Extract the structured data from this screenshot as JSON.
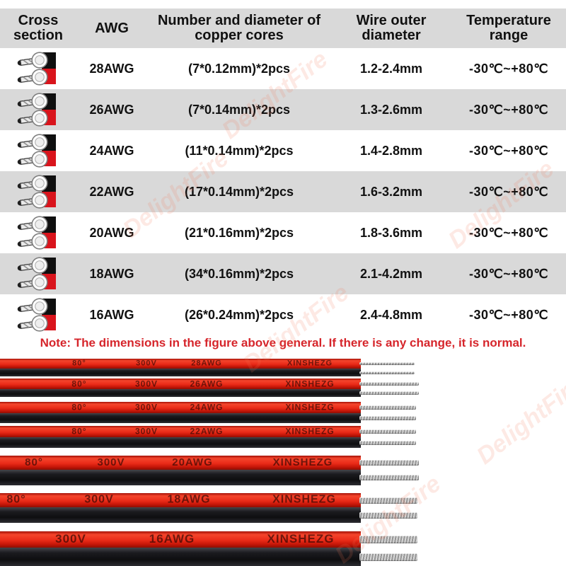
{
  "table": {
    "headers": [
      "Cross section",
      "AWG",
      "Number and diameter of copper cores",
      "Wire outer diameter",
      "Temperature range"
    ],
    "rows": [
      {
        "awg": "28AWG",
        "cores": "(7*0.12mm)*2pcs",
        "outer_diameter": "1.2-2.4mm",
        "temp_range": "-30℃~+80℃"
      },
      {
        "awg": "26AWG",
        "cores": "(7*0.14mm)*2pcs",
        "outer_diameter": "1.3-2.6mm",
        "temp_range": "-30℃~+80℃"
      },
      {
        "awg": "24AWG",
        "cores": "(11*0.14mm)*2pcs",
        "outer_diameter": "1.4-2.8mm",
        "temp_range": "-30℃~+80℃"
      },
      {
        "awg": "22AWG",
        "cores": "(17*0.14mm)*2pcs",
        "outer_diameter": "1.6-3.2mm",
        "temp_range": "-30℃~+80℃"
      },
      {
        "awg": "20AWG",
        "cores": "(21*0.16mm)*2pcs",
        "outer_diameter": "1.8-3.6mm",
        "temp_range": "-30℃~+80℃"
      },
      {
        "awg": "18AWG",
        "cores": "(34*0.16mm)*2pcs",
        "outer_diameter": "2.1-4.2mm",
        "temp_range": "-30℃~+80℃"
      },
      {
        "awg": "16AWG",
        "cores": "(26*0.24mm)*2pcs",
        "outer_diameter": "2.4-4.8mm",
        "temp_range": "-30℃~+80℃"
      }
    ]
  },
  "note": "Note: The dimensions in the figure above general. If there is any change, it is normal.",
  "wires": [
    {
      "print": [
        "80°",
        "300V",
        "28AWG",
        "XINSHEZG"
      ]
    },
    {
      "print": [
        "80°",
        "300V",
        "26AWG",
        "XINSHEZG"
      ]
    },
    {
      "print": [
        "80°",
        "300V",
        "24AWG",
        "XINSHEZG"
      ]
    },
    {
      "print": [
        "80°",
        "300V",
        "22AWG",
        "XINSHEZG"
      ]
    },
    {
      "print": [
        "80°",
        "300V",
        "20AWG",
        "XINSHEZG"
      ]
    },
    {
      "print": [
        "80°",
        "300V",
        "18AWG",
        "XINSHEZG"
      ]
    },
    {
      "print": [
        "300V",
        "16AWG",
        "XINSHEZG"
      ]
    }
  ],
  "watermark": "DelightFire",
  "colors": {
    "table_gray": "#d9d9d9",
    "note_red": "#d6252b",
    "wire_red": "#ea2b18",
    "wire_black": "#141416",
    "conductor_gray": "#c0c0c0",
    "icon_red": "#d9141c",
    "icon_black": "#0f0f0f"
  }
}
